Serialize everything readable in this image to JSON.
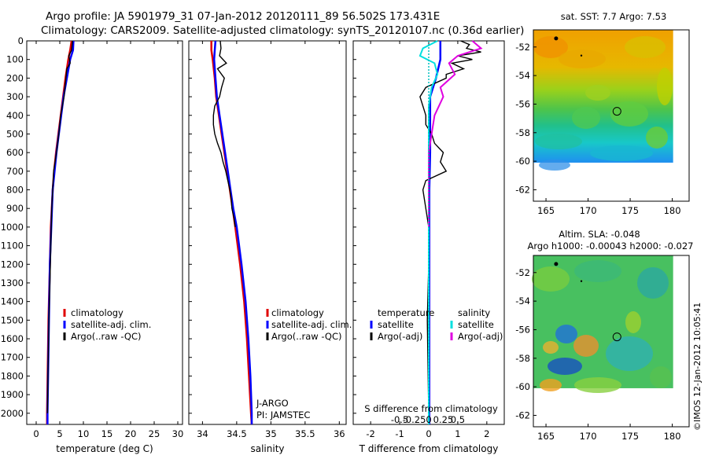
{
  "header": {
    "line1": "Argo profile: JA 5901979_31 07-Jan-2012 20120111_89 56.502S 173.431E",
    "line2": "Climatology: CARS2009. Satellite-adjusted climatology: synTS_20120107.nc (0.36d earlier)"
  },
  "colors": {
    "climatology": "#e00000",
    "satellite": "#0000ff",
    "argo": "#000000",
    "salinity_satellite": "#00e0e0",
    "salinity_argo": "#e000e0",
    "zero_line": "#00c0c0"
  },
  "credit": "©IMOS 12-Jan-2012 10:05:41",
  "chart_data": [
    {
      "type": "line",
      "panel": "temperature",
      "xlabel": "temperature (deg C)",
      "ylabel": "",
      "xlim": [
        -2,
        31
      ],
      "ylim": [
        2060,
        0
      ],
      "xticks": [
        "0",
        "5",
        "10",
        "15",
        "20",
        "25",
        "30"
      ],
      "yticks": [
        "0",
        "100",
        "200",
        "300",
        "400",
        "500",
        "600",
        "700",
        "800",
        "900",
        "1000",
        "1100",
        "1200",
        "1300",
        "1400",
        "1500",
        "1600",
        "1700",
        "1800",
        "1900",
        "2000"
      ],
      "legend": [
        "climatology",
        "satellite-adj. clim.",
        "Argo(..raw -QC)"
      ],
      "series": [
        {
          "name": "climatology",
          "depth": [
            0,
            50,
            100,
            200,
            300,
            400,
            500,
            600,
            700,
            800,
            1000,
            1200,
            1500,
            2000,
            2060
          ],
          "x": [
            7.5,
            7.2,
            6.8,
            6.2,
            5.7,
            5.2,
            4.7,
            4.2,
            3.8,
            3.5,
            3.1,
            2.9,
            2.6,
            2.3,
            2.3
          ]
        },
        {
          "name": "satellite-adj. clim.",
          "depth": [
            0,
            50,
            100,
            200,
            300,
            400,
            500,
            600,
            700,
            800,
            1000,
            1200,
            1500,
            2000,
            2060
          ],
          "x": [
            7.9,
            7.8,
            7.2,
            6.5,
            5.8,
            5.3,
            4.8,
            4.3,
            3.9,
            3.5,
            3.2,
            2.9,
            2.7,
            2.4,
            2.4
          ]
        },
        {
          "name": "Argo(..raw -QC)",
          "depth": [
            0,
            50,
            80,
            120,
            150,
            200,
            300,
            400,
            500,
            600,
            700,
            800,
            900,
            1000,
            1200,
            1500,
            1800,
            2000
          ],
          "x": [
            7.7,
            7.5,
            6.9,
            7.2,
            6.5,
            6.3,
            5.9,
            5.2,
            4.8,
            4.3,
            3.7,
            3.5,
            3.3,
            3.2,
            3.0,
            2.7,
            2.5,
            2.4
          ]
        }
      ]
    },
    {
      "type": "line",
      "panel": "salinity",
      "xlabel": "salinity",
      "ylabel": "",
      "xlim": [
        33.8,
        36.1
      ],
      "ylim": [
        2060,
        0
      ],
      "xticks": [
        "34",
        "34.5",
        "35",
        "35.5",
        "36"
      ],
      "legend": [
        "climatology",
        "satellite-adj. clim.",
        "Argo(..raw -QC)"
      ],
      "annotations": [
        "J-ARGO",
        "PI: JAMSTEC"
      ],
      "series": [
        {
          "name": "climatology",
          "depth": [
            0,
            50,
            100,
            200,
            300,
            400,
            500,
            600,
            700,
            800,
            900,
            1000,
            1200,
            1400,
            1600,
            1800,
            2000,
            2060
          ],
          "x": [
            34.13,
            34.13,
            34.15,
            34.18,
            34.2,
            34.24,
            34.28,
            34.32,
            34.36,
            34.4,
            34.44,
            34.48,
            34.55,
            34.61,
            34.65,
            34.68,
            34.71,
            34.72
          ]
        },
        {
          "name": "satellite-adj. clim.",
          "depth": [
            0,
            50,
            100,
            200,
            300,
            400,
            500,
            600,
            700,
            800,
            900,
            1000,
            1200,
            1400,
            1600,
            1800,
            2000,
            2060
          ],
          "x": [
            34.19,
            34.18,
            34.17,
            34.19,
            34.21,
            34.25,
            34.29,
            34.33,
            34.37,
            34.41,
            34.45,
            34.5,
            34.57,
            34.63,
            34.67,
            34.7,
            34.72,
            34.72
          ]
        },
        {
          "name": "Argo(..raw -QC)",
          "depth": [
            0,
            40,
            80,
            120,
            150,
            200,
            250,
            300,
            350,
            400,
            450,
            500,
            550,
            600,
            650,
            700,
            750,
            800,
            850,
            900,
            950,
            1000
          ],
          "x": [
            34.26,
            34.27,
            34.25,
            34.35,
            34.22,
            34.32,
            34.28,
            34.25,
            34.18,
            34.16,
            34.16,
            34.18,
            34.22,
            34.27,
            34.3,
            34.34,
            34.37,
            34.4,
            34.42,
            34.43,
            34.46,
            34.48
          ]
        }
      ]
    },
    {
      "type": "line",
      "panel": "difference",
      "xlabel": "T difference from climatology",
      "xlabel_top": "S difference from climatology",
      "xlim": [
        -2.6,
        2.6
      ],
      "ylim": [
        2060,
        0
      ],
      "xticks": [
        "-2",
        "-1",
        "0",
        "1",
        "2"
      ],
      "xticks_salinity": [
        "-0.5",
        "-0.25",
        "0",
        "0.25",
        "0.5"
      ],
      "legend_temperature": {
        "title": "temperature",
        "items": [
          "satellite",
          "Argo(-adj)"
        ]
      },
      "legend_salinity": {
        "title": "salinity",
        "items": [
          "satellite",
          "Argo(-adj)"
        ]
      },
      "series": [
        {
          "name": "temperature satellite",
          "depth": [
            0,
            100,
            200,
            300,
            400,
            600,
            800,
            1000,
            1500,
            2060
          ],
          "x": [
            0.4,
            0.4,
            0.25,
            0.05,
            0.05,
            0.05,
            0.02,
            0.02,
            0.02,
            0.02
          ]
        },
        {
          "name": "temperature Argo(-adj)",
          "depth": [
            0,
            20,
            40,
            60,
            80,
            100,
            120,
            150,
            180,
            200,
            250,
            300,
            350,
            400,
            450,
            500,
            550,
            600,
            650,
            700,
            750,
            800,
            900,
            1000,
            1200,
            1500,
            2000
          ],
          "x": [
            1.1,
            1.4,
            1.3,
            1.8,
            1.0,
            1.5,
            0.8,
            1.2,
            0.6,
            0.6,
            -0.1,
            -0.3,
            -0.2,
            -0.1,
            -0.1,
            0.1,
            0.2,
            0.5,
            0.4,
            0.6,
            -0.1,
            -0.2,
            -0.1,
            0.0,
            0.0,
            -0.05,
            0.0
          ]
        },
        {
          "name": "salinity satellite",
          "depth": [
            0,
            40,
            80,
            120,
            180,
            250,
            350,
            500,
            700,
            1000,
            1500,
            2060
          ],
          "x": [
            0.3,
            -0.2,
            -0.3,
            0.2,
            0.3,
            0.1,
            0.0,
            0.0,
            0.0,
            0.0,
            0.0,
            0.0
          ]
        },
        {
          "name": "salinity Argo(-adj)",
          "depth": [
            0,
            40,
            80,
            120,
            180,
            250,
            300,
            400,
            500,
            600,
            700,
            1000
          ],
          "x": [
            1.5,
            1.8,
            1.0,
            0.7,
            0.9,
            0.4,
            0.5,
            0.2,
            0.1,
            0.0,
            0.0,
            0.0
          ]
        }
      ]
    },
    {
      "type": "heatmap",
      "panel": "sst-map",
      "title": "sat. SST: 7.7 Argo: 7.53",
      "xticks": [
        "165",
        "170",
        "175",
        "180"
      ],
      "yticks": [
        "-52",
        "-54",
        "-56",
        "-58",
        "-60",
        "-62"
      ],
      "xlim": [
        163.5,
        182
      ],
      "ylim": [
        -62.8,
        -50.8
      ],
      "argo_position": {
        "lon": 173.431,
        "lat": -56.502
      }
    },
    {
      "type": "heatmap",
      "panel": "sla-map",
      "title_line1": "Altim. SLA: -0.048",
      "title_line2": "Argo h1000: -0.00043 h2000: -0.027",
      "xticks": [
        "165",
        "170",
        "175",
        "180"
      ],
      "yticks": [
        "-52",
        "-54",
        "-56",
        "-58",
        "-60",
        "-62"
      ],
      "xlim": [
        163.5,
        182
      ],
      "ylim": [
        -62.8,
        -50.8
      ],
      "argo_position": {
        "lon": 173.431,
        "lat": -56.502
      }
    }
  ]
}
